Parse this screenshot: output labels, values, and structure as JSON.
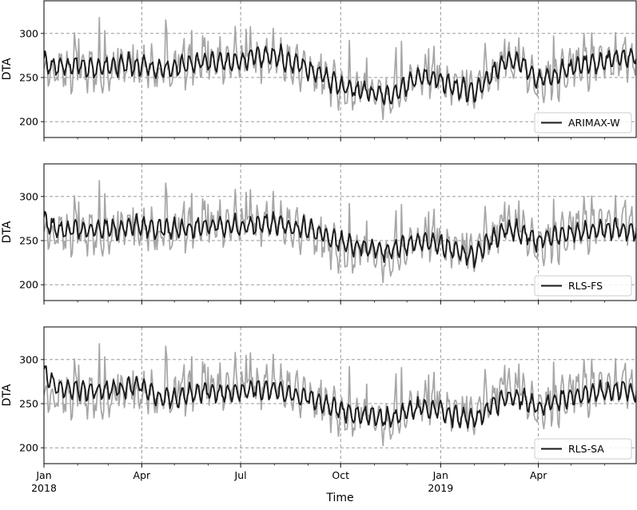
{
  "figure": {
    "xlabel": "Time",
    "x_tick_labels": [
      {
        "date": "2018-01-01",
        "lines": [
          "Jan",
          "2018"
        ]
      },
      {
        "date": "2018-04-01",
        "lines": [
          "Apr"
        ]
      },
      {
        "date": "2018-07-01",
        "lines": [
          "Jul"
        ]
      },
      {
        "date": "2018-10-01",
        "lines": [
          "Oct"
        ]
      },
      {
        "date": "2019-01-01",
        "lines": [
          "Jan",
          "2019"
        ]
      },
      {
        "date": "2019-04-01",
        "lines": [
          "Apr"
        ]
      }
    ]
  },
  "chart_data": [
    {
      "type": "line",
      "ylabel": "DTA",
      "xlim": [
        "2018-01-01",
        "2019-06-30"
      ],
      "ylim": [
        182,
        337
      ],
      "yticks": [
        200,
        250,
        300
      ],
      "grid": true,
      "legend_position": "bottom-right",
      "series": [
        {
          "name": "",
          "color": "#a6a6a6",
          "x": [
            "2018-01-01",
            "2018-01-15",
            "2018-02-01",
            "2018-02-15",
            "2018-03-01",
            "2018-03-15",
            "2018-04-01",
            "2018-04-15",
            "2018-05-01",
            "2018-05-15",
            "2018-06-01",
            "2018-06-15",
            "2018-07-01",
            "2018-07-15",
            "2018-08-01",
            "2018-08-15",
            "2018-09-01",
            "2018-09-15",
            "2018-10-01",
            "2018-10-15",
            "2018-11-01",
            "2018-11-15",
            "2018-12-01",
            "2018-12-15",
            "2019-01-01",
            "2019-01-15",
            "2019-02-01",
            "2019-02-15",
            "2019-03-01",
            "2019-03-15",
            "2019-04-01",
            "2019-04-15",
            "2019-05-01",
            "2019-05-15",
            "2019-06-01",
            "2019-06-15",
            "2019-06-30"
          ],
          "y": [
            262,
            258,
            260,
            256,
            258,
            262,
            262,
            256,
            258,
            265,
            268,
            266,
            268,
            272,
            274,
            266,
            258,
            250,
            238,
            234,
            230,
            226,
            240,
            250,
            246,
            240,
            234,
            250,
            266,
            266,
            244,
            250,
            258,
            264,
            266,
            272,
            270
          ]
        },
        {
          "name": "ARIMAX-W",
          "color": "#1a1a1a",
          "x": [
            "2018-01-01",
            "2018-01-15",
            "2018-02-01",
            "2018-02-15",
            "2018-03-01",
            "2018-03-15",
            "2018-04-01",
            "2018-04-15",
            "2018-05-01",
            "2018-05-15",
            "2018-06-01",
            "2018-06-15",
            "2018-07-01",
            "2018-07-15",
            "2018-08-01",
            "2018-08-15",
            "2018-09-01",
            "2018-09-15",
            "2018-10-01",
            "2018-10-15",
            "2018-11-01",
            "2018-11-15",
            "2018-12-01",
            "2018-12-15",
            "2019-01-01",
            "2019-01-15",
            "2019-02-01",
            "2019-02-15",
            "2019-03-01",
            "2019-03-15",
            "2019-04-01",
            "2019-04-15",
            "2019-05-01",
            "2019-05-15",
            "2019-06-01",
            "2019-06-15",
            "2019-06-30"
          ],
          "y": [
            266,
            262,
            264,
            260,
            262,
            264,
            264,
            258,
            260,
            266,
            268,
            266,
            268,
            274,
            276,
            268,
            260,
            252,
            240,
            236,
            232,
            228,
            242,
            252,
            248,
            240,
            232,
            250,
            268,
            268,
            246,
            252,
            260,
            266,
            268,
            274,
            272
          ]
        }
      ]
    },
    {
      "type": "line",
      "ylabel": "DTA",
      "xlim": [
        "2018-01-01",
        "2019-06-30"
      ],
      "ylim": [
        182,
        337
      ],
      "yticks": [
        200,
        250,
        300
      ],
      "grid": true,
      "legend_position": "bottom-right",
      "series": [
        {
          "name": "",
          "color": "#a6a6a6",
          "x": [
            "2018-01-01",
            "2018-01-15",
            "2018-02-01",
            "2018-02-15",
            "2018-03-01",
            "2018-03-15",
            "2018-04-01",
            "2018-04-15",
            "2018-05-01",
            "2018-05-15",
            "2018-06-01",
            "2018-06-15",
            "2018-07-01",
            "2018-07-15",
            "2018-08-01",
            "2018-08-15",
            "2018-09-01",
            "2018-09-15",
            "2018-10-01",
            "2018-10-15",
            "2018-11-01",
            "2018-11-15",
            "2018-12-01",
            "2018-12-15",
            "2019-01-01",
            "2019-01-15",
            "2019-02-01",
            "2019-02-15",
            "2019-03-01",
            "2019-03-15",
            "2019-04-01",
            "2019-04-15",
            "2019-05-01",
            "2019-05-15",
            "2019-06-01",
            "2019-06-15",
            "2019-06-30"
          ],
          "y": [
            262,
            258,
            260,
            256,
            258,
            262,
            262,
            256,
            258,
            265,
            268,
            266,
            268,
            272,
            274,
            266,
            258,
            250,
            238,
            234,
            230,
            226,
            240,
            250,
            246,
            240,
            234,
            250,
            266,
            266,
            244,
            250,
            258,
            264,
            266,
            272,
            270
          ]
        },
        {
          "name": "RLS-FS",
          "color": "#1a1a1a",
          "x": [
            "2018-01-01",
            "2018-01-15",
            "2018-02-01",
            "2018-02-15",
            "2018-03-01",
            "2018-03-15",
            "2018-04-01",
            "2018-04-15",
            "2018-05-01",
            "2018-05-15",
            "2018-06-01",
            "2018-06-15",
            "2018-07-01",
            "2018-07-15",
            "2018-08-01",
            "2018-08-15",
            "2018-09-01",
            "2018-09-15",
            "2018-10-01",
            "2018-10-15",
            "2018-11-01",
            "2018-11-15",
            "2018-12-01",
            "2018-12-15",
            "2019-01-01",
            "2019-01-15",
            "2019-02-01",
            "2019-02-15",
            "2019-03-01",
            "2019-03-15",
            "2019-04-01",
            "2019-04-15",
            "2019-05-01",
            "2019-05-15",
            "2019-06-01",
            "2019-06-15",
            "2019-06-30"
          ],
          "y": [
            272,
            262,
            262,
            262,
            264,
            264,
            266,
            264,
            262,
            264,
            266,
            266,
            266,
            268,
            270,
            266,
            262,
            256,
            248,
            244,
            240,
            238,
            246,
            250,
            246,
            238,
            232,
            250,
            262,
            260,
            250,
            256,
            258,
            260,
            262,
            264,
            262
          ]
        }
      ]
    },
    {
      "type": "line",
      "ylabel": "DTA",
      "xlim": [
        "2018-01-01",
        "2019-06-30"
      ],
      "ylim": [
        182,
        337
      ],
      "yticks": [
        200,
        250,
        300
      ],
      "grid": true,
      "legend_position": "bottom-right",
      "series": [
        {
          "name": "",
          "color": "#a6a6a6",
          "x": [
            "2018-01-01",
            "2018-01-15",
            "2018-02-01",
            "2018-02-15",
            "2018-03-01",
            "2018-03-15",
            "2018-04-01",
            "2018-04-15",
            "2018-05-01",
            "2018-05-15",
            "2018-06-01",
            "2018-06-15",
            "2018-07-01",
            "2018-07-15",
            "2018-08-01",
            "2018-08-15",
            "2018-09-01",
            "2018-09-15",
            "2018-10-01",
            "2018-10-15",
            "2018-11-01",
            "2018-11-15",
            "2018-12-01",
            "2018-12-15",
            "2019-01-01",
            "2019-01-15",
            "2019-02-01",
            "2019-02-15",
            "2019-03-01",
            "2019-03-15",
            "2019-04-01",
            "2019-04-15",
            "2019-05-01",
            "2019-05-15",
            "2019-06-01",
            "2019-06-15",
            "2019-06-30"
          ],
          "y": [
            262,
            258,
            260,
            256,
            258,
            262,
            262,
            256,
            258,
            265,
            268,
            266,
            268,
            272,
            274,
            266,
            258,
            250,
            238,
            234,
            230,
            226,
            240,
            250,
            246,
            240,
            234,
            250,
            266,
            266,
            244,
            250,
            258,
            264,
            266,
            272,
            270
          ]
        },
        {
          "name": "RLS-SA",
          "color": "#1a1a1a",
          "x": [
            "2018-01-01",
            "2018-01-15",
            "2018-02-01",
            "2018-02-15",
            "2018-03-01",
            "2018-03-15",
            "2018-04-01",
            "2018-04-15",
            "2018-05-01",
            "2018-05-15",
            "2018-06-01",
            "2018-06-15",
            "2018-07-01",
            "2018-07-15",
            "2018-08-01",
            "2018-08-15",
            "2018-09-01",
            "2018-09-15",
            "2018-10-01",
            "2018-10-15",
            "2018-11-01",
            "2018-11-15",
            "2018-12-01",
            "2018-12-15",
            "2019-01-01",
            "2019-01-15",
            "2019-02-01",
            "2019-02-15",
            "2019-03-01",
            "2019-03-15",
            "2019-04-01",
            "2019-04-15",
            "2019-05-01",
            "2019-05-15",
            "2019-06-01",
            "2019-06-15",
            "2019-06-30"
          ],
          "y": [
            285,
            268,
            266,
            264,
            266,
            268,
            270,
            256,
            256,
            260,
            264,
            262,
            264,
            266,
            266,
            260,
            256,
            250,
            242,
            238,
            234,
            232,
            240,
            246,
            242,
            236,
            232,
            246,
            256,
            256,
            246,
            252,
            258,
            262,
            262,
            266,
            264
          ]
        }
      ]
    }
  ]
}
